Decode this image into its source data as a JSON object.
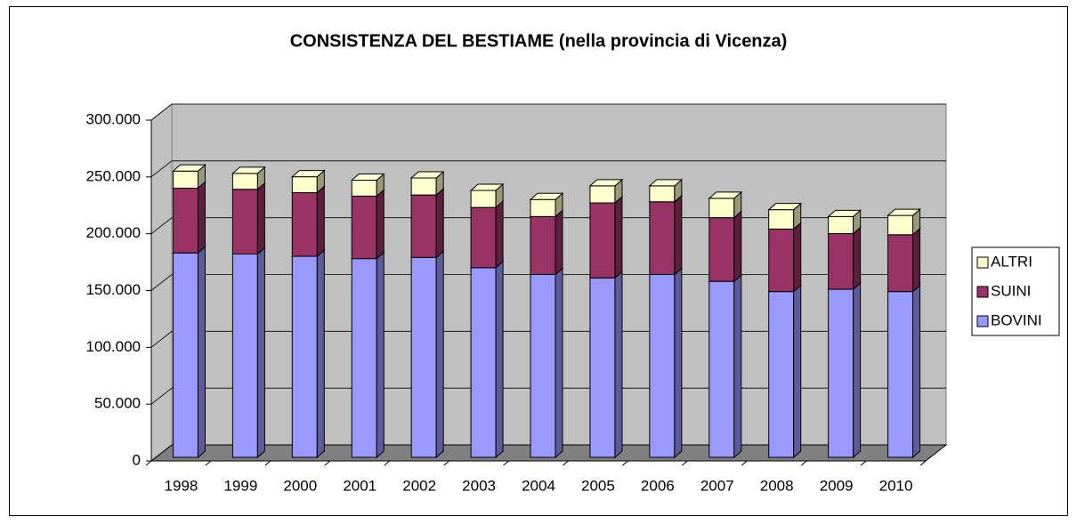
{
  "chart_data": {
    "type": "bar3d_stacked",
    "title": "CONSISTENZA DEL BESTIAME (nella provincia di Vicenza)",
    "categories": [
      "1998",
      "1999",
      "2000",
      "2001",
      "2002",
      "2003",
      "2004",
      "2005",
      "2006",
      "2007",
      "2008",
      "2009",
      "2010"
    ],
    "series": [
      {
        "name": "BOVINI",
        "color": "#9999ff",
        "values": [
          180000,
          179000,
          177000,
          175000,
          176000,
          167000,
          161000,
          158000,
          161000,
          155000,
          146000,
          148000,
          146000
        ]
      },
      {
        "name": "SUINI",
        "color": "#993366",
        "values": [
          57000,
          57000,
          56000,
          55000,
          55000,
          53000,
          51000,
          66000,
          64000,
          56000,
          55000,
          49000,
          50000
        ]
      },
      {
        "name": "ALTRI",
        "color": "#ffffcc",
        "values": [
          15000,
          14000,
          14000,
          14000,
          15000,
          15000,
          15000,
          15000,
          14000,
          17000,
          17000,
          15000,
          17000
        ]
      }
    ],
    "ylim": [
      0,
      300000
    ],
    "yticks": [
      0,
      {
        "value": 50000,
        "label": "50.000"
      },
      {
        "value": 100000,
        "label": "100.000"
      },
      {
        "value": 150000,
        "label": "150.000"
      },
      {
        "value": 200000,
        "label": "200.000"
      },
      {
        "value": 250000,
        "label": "250.000"
      },
      {
        "value": 300000,
        "label": "300.000"
      }
    ],
    "grid": true,
    "legend": "right"
  }
}
